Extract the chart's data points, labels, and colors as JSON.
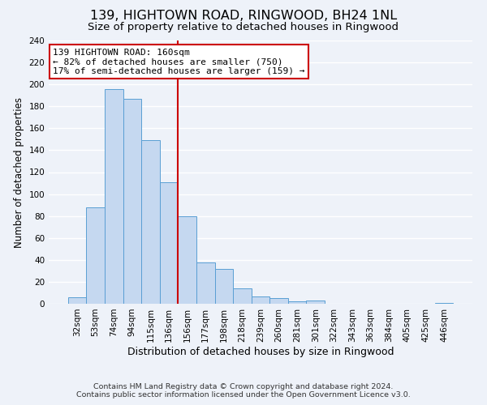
{
  "title": "139, HIGHTOWN ROAD, RINGWOOD, BH24 1NL",
  "subtitle": "Size of property relative to detached houses in Ringwood",
  "xlabel": "Distribution of detached houses by size in Ringwood",
  "ylabel": "Number of detached properties",
  "bar_labels": [
    "32sqm",
    "53sqm",
    "74sqm",
    "94sqm",
    "115sqm",
    "136sqm",
    "156sqm",
    "177sqm",
    "198sqm",
    "218sqm",
    "239sqm",
    "260sqm",
    "281sqm",
    "301sqm",
    "322sqm",
    "343sqm",
    "363sqm",
    "384sqm",
    "405sqm",
    "425sqm",
    "446sqm"
  ],
  "bar_values": [
    6,
    88,
    196,
    187,
    149,
    111,
    80,
    38,
    32,
    14,
    7,
    5,
    2,
    3,
    0,
    0,
    0,
    0,
    0,
    0,
    1
  ],
  "bar_color": "#c5d8f0",
  "bar_edge_color": "#5a9fd4",
  "vline_x_idx": 6,
  "vline_color": "#cc0000",
  "annotation_line1": "139 HIGHTOWN ROAD: 160sqm",
  "annotation_line2": "← 82% of detached houses are smaller (750)",
  "annotation_line3": "17% of semi-detached houses are larger (159) →",
  "annotation_box_edgecolor": "#cc0000",
  "annotation_box_facecolor": "#ffffff",
  "ylim": [
    0,
    240
  ],
  "yticks": [
    0,
    20,
    40,
    60,
    80,
    100,
    120,
    140,
    160,
    180,
    200,
    220,
    240
  ],
  "footer_line1": "Contains HM Land Registry data © Crown copyright and database right 2024.",
  "footer_line2": "Contains public sector information licensed under the Open Government Licence v3.0.",
  "background_color": "#eef2f9",
  "grid_color": "#ffffff",
  "title_fontsize": 11.5,
  "subtitle_fontsize": 9.5,
  "xlabel_fontsize": 9,
  "ylabel_fontsize": 8.5,
  "tick_fontsize": 7.5,
  "annotation_fontsize": 8,
  "footer_fontsize": 6.8
}
